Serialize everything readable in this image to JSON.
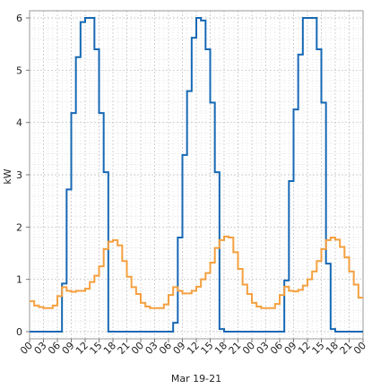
{
  "chart_data": {
    "type": "line",
    "title": "",
    "xlabel": "Mar 19-21",
    "ylabel": "kW",
    "ylim": [
      0,
      6
    ],
    "yticks": [
      0,
      1,
      2,
      3,
      4,
      5,
      6
    ],
    "xlim": [
      0,
      72
    ],
    "x_tick_step_hours": 3,
    "xtick_labels": [
      "00",
      "03",
      "06",
      "09",
      "12",
      "15",
      "18",
      "21",
      "00",
      "03",
      "06",
      "09",
      "12",
      "15",
      "18",
      "21",
      "00",
      "03",
      "06",
      "09",
      "12",
      "15",
      "18",
      "21",
      "00"
    ],
    "grid": true,
    "legend": "none",
    "step": "hourly",
    "x": [
      0,
      1,
      2,
      3,
      4,
      5,
      6,
      7,
      8,
      9,
      10,
      11,
      12,
      13,
      14,
      15,
      16,
      17,
      18,
      19,
      20,
      21,
      22,
      23,
      24,
      25,
      26,
      27,
      28,
      29,
      30,
      31,
      32,
      33,
      34,
      35,
      36,
      37,
      38,
      39,
      40,
      41,
      42,
      43,
      44,
      45,
      46,
      47,
      48,
      49,
      50,
      51,
      52,
      53,
      54,
      55,
      56,
      57,
      58,
      59,
      60,
      61,
      62,
      63,
      64,
      65,
      66,
      67,
      68,
      69,
      70,
      71
    ],
    "series": [
      {
        "color": "#1668b4",
        "values": [
          0,
          0,
          0,
          0,
          0,
          0,
          0,
          0.92,
          2.72,
          4.18,
          5.25,
          5.92,
          6,
          6,
          5.4,
          4.18,
          3.05,
          0,
          0,
          0,
          0,
          0,
          0,
          0,
          0,
          0,
          0,
          0,
          0,
          0,
          0,
          0.17,
          1.8,
          3.38,
          4.6,
          5.62,
          6,
          5.95,
          5.4,
          4.38,
          3.05,
          0.05,
          0,
          0,
          0,
          0,
          0,
          0,
          0,
          0,
          0,
          0,
          0,
          0,
          0,
          0.98,
          2.88,
          4.25,
          5.3,
          6,
          6,
          6,
          5.4,
          4.38,
          1.3,
          0.05,
          0,
          0,
          0,
          0,
          0,
          0
        ]
      },
      {
        "color": "#f4a040",
        "values": [
          0.58,
          0.5,
          0.47,
          0.45,
          0.45,
          0.5,
          0.68,
          0.85,
          0.78,
          0.76,
          0.78,
          0.78,
          0.82,
          0.95,
          1.07,
          1.25,
          1.58,
          1.72,
          1.75,
          1.65,
          1.35,
          1.05,
          0.85,
          0.72,
          0.55,
          0.48,
          0.45,
          0.45,
          0.45,
          0.52,
          0.7,
          0.85,
          0.78,
          0.73,
          0.73,
          0.78,
          0.86,
          1,
          1.12,
          1.32,
          1.6,
          1.75,
          1.82,
          1.8,
          1.52,
          1.2,
          0.9,
          0.72,
          0.55,
          0.48,
          0.45,
          0.45,
          0.45,
          0.53,
          0.7,
          0.86,
          0.78,
          0.77,
          0.8,
          0.88,
          1,
          1.15,
          1.35,
          1.58,
          1.75,
          1.8,
          1.76,
          1.62,
          1.42,
          1.15,
          0.9,
          0.65
        ]
      }
    ]
  }
}
